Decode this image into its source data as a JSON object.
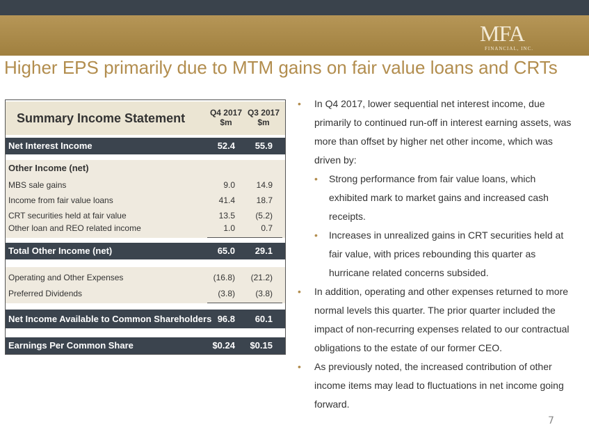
{
  "header": {
    "logo": "MFA",
    "logo_sub": "FINANCIAL, INC.",
    "title": "Higher EPS primarily due to MTM gains on fair value loans and CRTs"
  },
  "table": {
    "title": "Summary Income Statement",
    "columns": [
      [
        "Q4 2017",
        "$m"
      ],
      [
        "Q3 2017",
        "$m"
      ]
    ],
    "rows": [
      [
        "Net Interest Income",
        "52.4",
        "55.9"
      ],
      [
        "Other Income (net)"
      ],
      [
        "MBS sale gains",
        "9.0",
        "14.9"
      ],
      [
        "Income from fair value loans",
        "41.4",
        "18.7"
      ],
      [
        "CRT securities held at fair value",
        "13.5",
        "(5.2)"
      ],
      [
        "Other loan and REO related income",
        "1.0",
        "0.7"
      ],
      [
        "Total Other Income (net)",
        "65.0",
        "29.1"
      ],
      [
        "Operating and Other Expenses",
        "(16.8)",
        "(21.2)"
      ],
      [
        "Preferred Dividends",
        "(3.8)",
        "(3.8)"
      ],
      [
        "Net Income Available to Common Shareholders",
        "96.8",
        "60.1"
      ],
      [
        "Earnings Per Common Share",
        "$0.24",
        "$0.15"
      ]
    ]
  },
  "bullets": [
    {
      "text": "In Q4 2017, lower sequential net interest income, due primarily to continued run-off in interest earning assets, was more than offset by higher net other income, which was driven by:",
      "sub": [
        "Strong performance from fair value loans, which exhibited mark to market gains and increased cash receipts.",
        "Increases in unrealized gains in CRT securities held at fair value, with prices rebounding this quarter as hurricane related concerns subsided."
      ]
    },
    {
      "text": "In addition, operating and other expenses returned to more normal levels this quarter.  The prior quarter included the impact of non-recurring expenses related to our contractual obligations to the estate of our former CEO."
    },
    {
      "text": "As previously noted, the increased contribution of other income items may lead to fluctuations in net income going forward."
    }
  ],
  "page_number": "7"
}
